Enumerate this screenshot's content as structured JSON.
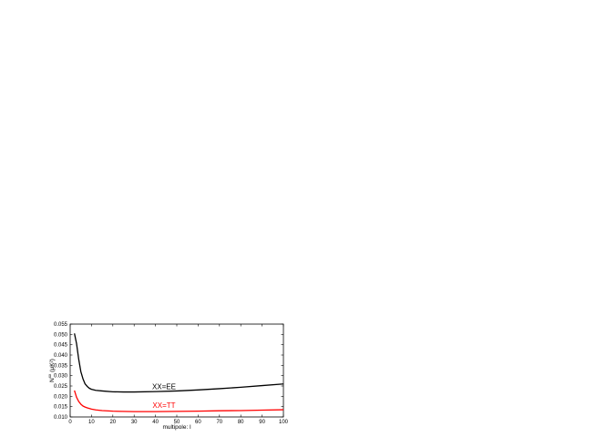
{
  "chart_data": {
    "type": "line",
    "xlabel": "multipole: l",
    "ylabel": "N",
    "ylabel_sup": "xx",
    "ylabel_unit": "(μK²)",
    "xlim": [
      0,
      100
    ],
    "ylim": [
      0.01,
      0.055
    ],
    "x_ticks": [
      0,
      10,
      20,
      30,
      40,
      50,
      60,
      70,
      80,
      90,
      100
    ],
    "y_ticks": [
      "0.010",
      "0.015",
      "0.020",
      "0.025",
      "0.030",
      "0.035",
      "0.040",
      "0.045",
      "0.050",
      "0.055"
    ],
    "grid": false,
    "series": [
      {
        "name": "XX=EE",
        "color": "#000000",
        "x": [
          2,
          3,
          4,
          5,
          6,
          7,
          8,
          9,
          10,
          12,
          15,
          20,
          25,
          30,
          40,
          50,
          60,
          70,
          80,
          90,
          100
        ],
        "y": [
          0.0505,
          0.0455,
          0.038,
          0.032,
          0.0285,
          0.026,
          0.0248,
          0.0239,
          0.0234,
          0.0229,
          0.0226,
          0.0222,
          0.0221,
          0.0221,
          0.0223,
          0.0226,
          0.0231,
          0.0237,
          0.0244,
          0.0252,
          0.026
        ]
      },
      {
        "name": "XX=TT",
        "color": "#ff0000",
        "x": [
          2,
          3,
          4,
          5,
          6,
          7,
          8,
          10,
          12,
          15,
          20,
          30,
          40,
          50,
          60,
          70,
          80,
          90,
          100
        ],
        "y": [
          0.0228,
          0.0195,
          0.0175,
          0.0162,
          0.0153,
          0.0148,
          0.0144,
          0.0138,
          0.0134,
          0.0131,
          0.0128,
          0.0126,
          0.0126,
          0.0127,
          0.0128,
          0.013,
          0.0131,
          0.0133,
          0.0135
        ]
      }
    ],
    "annotations": [
      {
        "text": "XX=EE",
        "x": 44,
        "y": 0.0235,
        "color": "#000000"
      },
      {
        "text": "XX=TT",
        "x": 44,
        "y": 0.0145,
        "color": "#ff0000"
      }
    ]
  }
}
